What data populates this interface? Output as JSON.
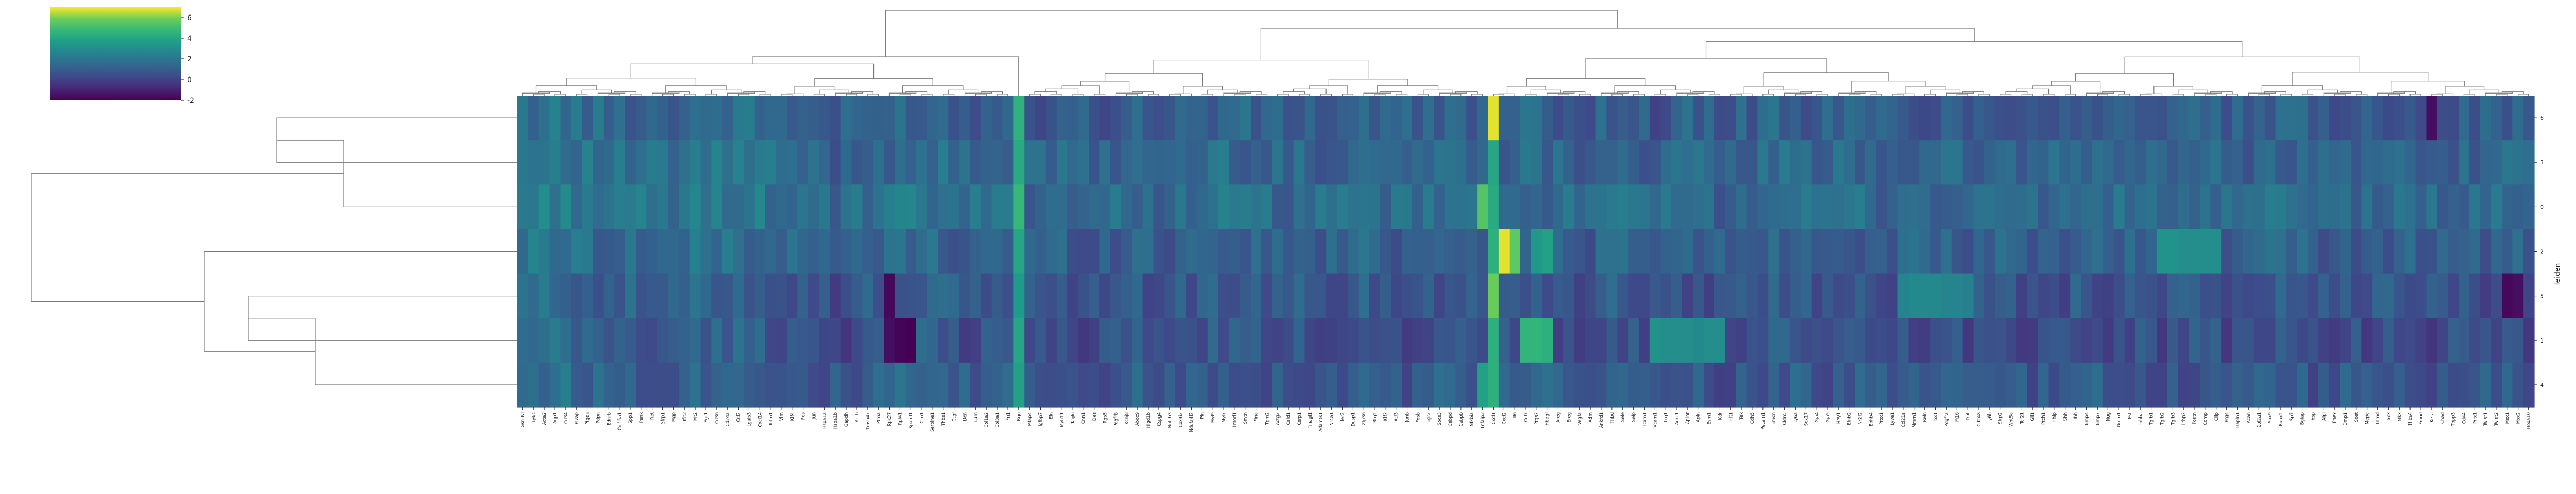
{
  "chart_data": {
    "type": "heatmap",
    "title": "",
    "xlabel": "",
    "ylabel": "leiden",
    "colormap": "viridis",
    "colorbar": {
      "ticks": [
        -2,
        0,
        2,
        4,
        6
      ],
      "range": [
        -2,
        7
      ]
    },
    "rows": [
      "6",
      "3",
      "0",
      "2",
      "5",
      "1",
      "4"
    ],
    "ncols": 187,
    "base_level": 0.3,
    "col_bias": [
      0.9,
      1.0,
      1.1,
      1.2,
      1.1,
      0.9,
      0.8,
      0.7,
      0.6,
      0.5,
      0.6,
      0.5,
      0.4,
      0.4,
      0.5,
      0.6,
      0.7,
      0.8,
      0.9,
      1.0,
      0.9,
      0.8,
      0.7,
      0.6,
      0.5,
      0.4,
      0.3,
      0.2,
      0.1,
      0.0,
      0.1,
      0.2,
      0.3,
      0.4,
      0.5,
      0.6,
      0.7,
      0.6,
      0.5,
      0.4,
      0.3,
      0.2,
      0.3,
      0.4,
      0.5,
      0.4,
      0.3,
      0.2,
      0.1,
      0.2,
      0.3,
      0.2,
      0.1,
      0.0,
      0.1,
      0.2,
      0.3,
      0.4,
      0.3,
      0.2,
      0.1,
      0.2,
      0.3,
      0.4,
      0.5,
      0.6,
      0.5,
      0.4,
      0.3,
      0.2,
      0.1,
      0.2,
      0.3,
      0.2,
      0.1,
      0.2,
      0.3,
      0.4,
      0.5,
      0.4,
      0.3,
      0.2,
      0.1,
      0.2,
      0.3,
      0.4,
      0.5,
      0.6,
      0.5,
      0.4,
      0.3,
      0.2,
      0.3,
      0.4,
      0.5,
      0.4,
      0.3,
      0.2,
      0.1,
      0.2,
      0.3,
      0.4,
      0.3,
      0.2,
      0.1,
      0.0,
      0.1,
      0.2,
      0.3,
      0.2,
      0.1,
      0.0,
      0.1,
      0.2,
      0.3,
      0.4,
      0.5,
      0.4,
      0.3,
      0.2,
      0.1,
      0.2,
      0.3,
      0.4,
      0.3,
      0.2,
      0.1,
      0.2,
      0.3,
      0.2,
      0.1,
      0.0,
      0.1,
      0.2,
      0.1,
      0.0,
      0.1,
      0.2,
      0.3,
      0.2,
      0.1,
      0.0,
      0.1,
      0.2,
      0.3,
      0.4,
      0.3,
      0.2,
      0.1,
      0.2,
      0.3,
      0.2,
      0.1,
      0.0,
      0.1,
      0.2,
      0.3,
      0.2,
      0.1,
      0.0,
      0.1,
      0.2,
      0.3,
      0.4,
      0.3,
      0.2,
      0.1,
      0.0,
      0.1,
      0.2,
      0.1,
      0.0,
      0.1,
      0.2,
      0.3,
      0.2,
      0.1,
      0.0,
      0.1,
      0.2,
      0.3,
      0.2,
      0.1,
      0.2,
      0.3,
      0.2,
      0.1
    ],
    "row_bias": [
      0.5,
      0.8,
      1.0,
      0.6,
      0.2,
      0.0,
      0.3
    ],
    "highlights": [
      {
        "col": 46,
        "row": 0,
        "value": 4.5
      },
      {
        "col": 46,
        "row": 1,
        "value": 4.2
      },
      {
        "col": 46,
        "row": 2,
        "value": 4.8
      },
      {
        "col": 46,
        "row": 3,
        "value": 4.0
      },
      {
        "col": 46,
        "row": 4,
        "value": 3.6
      },
      {
        "col": 46,
        "row": 5,
        "value": 4.0
      },
      {
        "col": 46,
        "row": 6,
        "value": 3.8
      },
      {
        "col": 89,
        "row": 2,
        "value": 5.4
      },
      {
        "col": 89,
        "row": 6,
        "value": 3.8
      },
      {
        "col": 90,
        "row": 0,
        "value": 6.8
      },
      {
        "col": 90,
        "row": 1,
        "value": 4.0
      },
      {
        "col": 90,
        "row": 2,
        "value": 4.2
      },
      {
        "col": 90,
        "row": 3,
        "value": 4.4
      },
      {
        "col": 90,
        "row": 4,
        "value": 5.8
      },
      {
        "col": 90,
        "row": 5,
        "value": 4.4
      },
      {
        "col": 90,
        "row": 6,
        "value": 4.4
      },
      {
        "col": 91,
        "row": 3,
        "value": 6.8
      },
      {
        "col": 92,
        "row": 3,
        "value": 5.6
      },
      {
        "col": 93,
        "row": 5,
        "value": 4.6
      },
      {
        "col": 94,
        "row": 5,
        "value": 4.6
      },
      {
        "col": 94,
        "row": 3,
        "value": 3.4
      },
      {
        "col": 95,
        "row": 3,
        "value": 3.8
      },
      {
        "col": 95,
        "row": 5,
        "value": 4.4
      },
      {
        "col": 34,
        "row": 4,
        "value": -1.8
      },
      {
        "col": 34,
        "row": 5,
        "value": -1.6
      },
      {
        "col": 35,
        "row": 5,
        "value": -1.9
      },
      {
        "col": 36,
        "row": 5,
        "value": -2.0
      },
      {
        "col": 152,
        "row": 3,
        "value": 3.2
      },
      {
        "col": 153,
        "row": 3,
        "value": 3.2
      },
      {
        "col": 154,
        "row": 3,
        "value": 3.0
      },
      {
        "col": 155,
        "row": 3,
        "value": 3.0
      },
      {
        "col": 156,
        "row": 3,
        "value": 3.0
      },
      {
        "col": 157,
        "row": 3,
        "value": 3.0
      },
      {
        "col": 105,
        "row": 5,
        "value": 3.2
      },
      {
        "col": 106,
        "row": 5,
        "value": 3.0
      },
      {
        "col": 107,
        "row": 5,
        "value": 3.0
      },
      {
        "col": 108,
        "row": 5,
        "value": 3.0
      },
      {
        "col": 109,
        "row": 5,
        "value": 2.8
      },
      {
        "col": 110,
        "row": 5,
        "value": 3.0
      },
      {
        "col": 111,
        "row": 5,
        "value": 3.0
      },
      {
        "col": 128,
        "row": 4,
        "value": 2.6
      },
      {
        "col": 129,
        "row": 4,
        "value": 2.8
      },
      {
        "col": 130,
        "row": 4,
        "value": 2.8
      },
      {
        "col": 131,
        "row": 4,
        "value": 2.8
      },
      {
        "col": 132,
        "row": 4,
        "value": 2.6
      },
      {
        "col": 133,
        "row": 4,
        "value": 2.6
      },
      {
        "col": 134,
        "row": 4,
        "value": 2.4
      },
      {
        "col": 177,
        "row": 0,
        "value": -1.6
      },
      {
        "col": 184,
        "row": 4,
        "value": -1.8
      },
      {
        "col": 185,
        "row": 4,
        "value": -1.6
      }
    ],
    "col_labels": [
      "Gsn-Ivl",
      "Ly6c",
      "Acta2",
      "Aqp1",
      "Cd34",
      "Plvap",
      "Ptgds",
      "Pdpn",
      "Ednrb",
      "Col15a1",
      "Spp1",
      "Penk",
      "Ret",
      "Sfrp1",
      "Mgp",
      "Ifit3",
      "Mt2",
      "Egr1",
      "Cd36",
      "Cd24a",
      "Ccl2",
      "Lgals3",
      "Cxcl14",
      "Ifitm1",
      "Vim",
      "Klf4",
      "Fos",
      "Jun",
      "Hspa1a",
      "Hspa1b",
      "Gapdh",
      "Actb",
      "Tmsb4x",
      "Ptma",
      "Rps27",
      "Rpl41",
      "Sparcl1",
      "Ccn1",
      "Serpine1",
      "Thbs1",
      "Ctgf",
      "Dcn",
      "Lum",
      "Col1a2",
      "Col3a1",
      "Fn1",
      "Bgn",
      "Mfap4",
      "Igfbp7",
      "Eln",
      "Myh11",
      "Tagln",
      "Cnn1",
      "Des",
      "Rgs5",
      "Pdgfrb",
      "Kcnj8",
      "Abcc9",
      "Higd1b",
      "Cspg4",
      "Notch3",
      "Cox4i2",
      "Ndufa4l2",
      "Pln",
      "Myl9",
      "Mylk",
      "Lmod1",
      "Smtn",
      "Flna",
      "Tpm2",
      "Actg2",
      "Cald1",
      "Csrp1",
      "Tinagl1",
      "Adamts1",
      "Nr4a1",
      "Ier2",
      "Dusp1",
      "Zfp36",
      "Btg2",
      "Klf2",
      "Atf3",
      "Junb",
      "Fosb",
      "Egr2",
      "Socs3",
      "Cebpd",
      "Cebpb",
      "Nfkbia",
      "Tnfaip3",
      "Cxcl1",
      "Cxcl2",
      "Il6",
      "Ccl7",
      "Ptgs2",
      "Hbegf",
      "Areg",
      "Ereg",
      "Vegfa",
      "Adm",
      "Ankrd1",
      "Thbd",
      "Sele",
      "Selp",
      "Icam1",
      "Vcam1",
      "Lrg1",
      "Ackr1",
      "Aplnr",
      "Apln",
      "Esm1",
      "Kdr",
      "Flt1",
      "Tek",
      "Cdh5",
      "Pecam1",
      "Emcn",
      "Cldn5",
      "Ly6a",
      "Sox17",
      "Gja4",
      "Gja5",
      "Hey1",
      "Efnb2",
      "Nr2f2",
      "Ephb4",
      "Prox1",
      "Lyve1",
      "Ccl21a",
      "Mmrn1",
      "Reln",
      "Tbx1",
      "Pdgfra",
      "Pi16",
      "Dpt",
      "Cd248",
      "Ly6h",
      "Sfrp2",
      "Wnt5a",
      "Tcf21",
      "Gli1",
      "Ptch1",
      "Hhip",
      "Shh",
      "Ihh",
      "Bmp4",
      "Bmp7",
      "Nog",
      "Grem1",
      "Fst",
      "Inhba",
      "Tgfb1",
      "Tgfb2",
      "Tgfb3",
      "Ltbp2",
      "Postn",
      "Comp",
      "Cilp",
      "Prg4",
      "Hapln1",
      "Acan",
      "Col2a1",
      "Sox9",
      "Runx2",
      "Sp7",
      "Bglap",
      "Ibsp",
      "Alpl",
      "Phex",
      "Dmp1",
      "Sost",
      "Mepe",
      "Tnmd",
      "Scx",
      "Mkx",
      "Thbs4",
      "Fmod",
      "Kera",
      "Chad",
      "Tppp3",
      "Cd44",
      "Prrx1",
      "Twist1",
      "Twist2",
      "Msx1",
      "Msx2",
      "Hoxa10"
    ]
  },
  "legend_ticks": [
    "-2",
    "0",
    "2",
    "4",
    "6"
  ]
}
